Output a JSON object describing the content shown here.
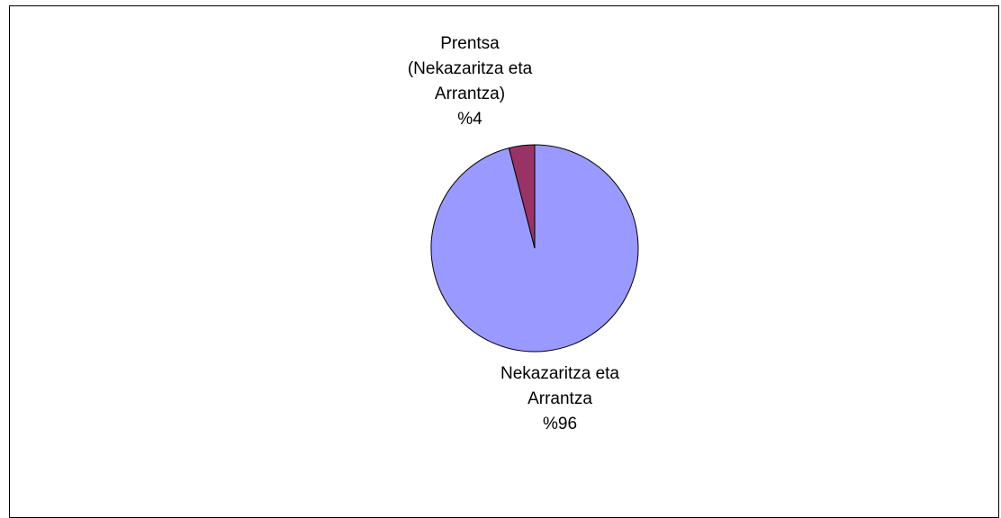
{
  "chart_data": {
    "type": "pie",
    "title": "",
    "slices": [
      {
        "name": "Nekazaritza eta Arrantza",
        "label_lines": [
          "Nekazaritza eta",
          "Arrantza",
          "%96"
        ],
        "value": 96,
        "color": "#9999ff"
      },
      {
        "name": "Prentsa (Nekazaritza eta Arrantza)",
        "label_lines": [
          "Prentsa",
          "(Nekazaritza eta",
          "Arrantza)",
          "%4"
        ],
        "value": 4,
        "color": "#993366"
      }
    ],
    "legend": "none"
  }
}
